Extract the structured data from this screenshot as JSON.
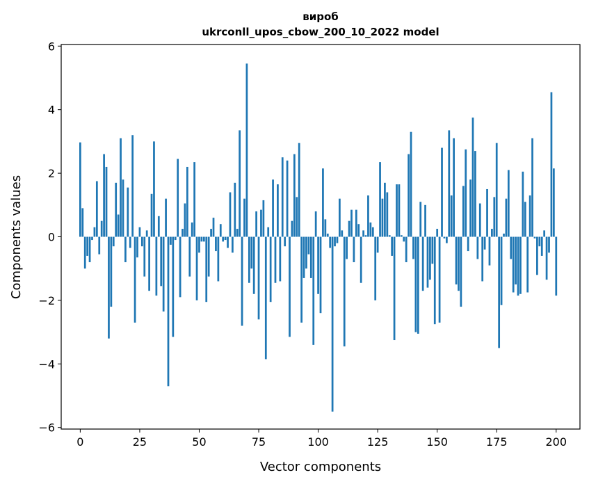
{
  "chart_data": {
    "type": "bar",
    "title_lines": [
      "вироб",
      "ukrconll_upos_cbow_200_10_2022 model"
    ],
    "xlabel": "Vector components",
    "ylabel": "Components values",
    "xlim": [
      -8,
      210
    ],
    "ylim": [
      -6.05,
      6.05
    ],
    "xticks": [
      0,
      25,
      50,
      75,
      100,
      125,
      150,
      175,
      200
    ],
    "yticks": [
      -6,
      -4,
      -2,
      0,
      2,
      4,
      6
    ],
    "xtick_labels": [
      "0",
      "25",
      "50",
      "75",
      "100",
      "125",
      "150",
      "175",
      "200"
    ],
    "ytick_labels": [
      "−6",
      "−4",
      "−2",
      "0",
      "2",
      "4",
      "6"
    ],
    "grid": false,
    "bar_color": "#1f77b4",
    "values": [
      2.97,
      0.9,
      -1.0,
      -0.6,
      -0.8,
      -0.1,
      0.3,
      1.75,
      -0.55,
      0.5,
      2.6,
      2.2,
      -3.2,
      -2.2,
      -0.3,
      1.7,
      0.7,
      3.1,
      1.8,
      -0.8,
      1.55,
      -0.35,
      3.2,
      -2.7,
      -0.65,
      0.3,
      -0.3,
      -1.25,
      0.2,
      -1.7,
      1.35,
      3.0,
      -1.85,
      0.65,
      -1.55,
      -2.35,
      1.2,
      -4.7,
      -0.25,
      -3.15,
      -0.1,
      2.45,
      -1.9,
      0.25,
      1.05,
      2.2,
      -1.25,
      0.45,
      2.35,
      -2.0,
      -0.5,
      -0.15,
      -0.15,
      -2.05,
      -1.25,
      0.25,
      0.6,
      -0.45,
      -1.4,
      0.4,
      -0.15,
      -0.1,
      -0.35,
      1.4,
      -0.5,
      1.7,
      0.25,
      3.35,
      -2.8,
      1.2,
      5.45,
      -1.45,
      -1.0,
      -1.8,
      0.8,
      -2.6,
      0.85,
      1.15,
      -3.85,
      0.3,
      -2.05,
      1.8,
      -1.45,
      1.65,
      -1.4,
      2.5,
      -0.3,
      2.4,
      -3.15,
      0.5,
      2.6,
      1.25,
      2.95,
      -2.7,
      -1.3,
      -1.0,
      -0.55,
      -1.3,
      -3.4,
      0.8,
      -1.8,
      -2.4,
      2.15,
      0.55,
      0.1,
      -0.35,
      -5.5,
      -0.3,
      -0.2,
      1.2,
      0.2,
      -3.45,
      -0.7,
      0.5,
      0.85,
      -0.8,
      0.85,
      0.4,
      -1.45,
      0.2,
      0.05,
      1.3,
      0.45,
      0.3,
      -2.0,
      -0.5,
      2.35,
      1.2,
      1.7,
      1.4,
      0.05,
      -0.6,
      -3.25,
      1.65,
      1.65,
      0.05,
      -0.15,
      -0.8,
      2.6,
      3.3,
      -0.7,
      -3.0,
      -3.05,
      1.1,
      -1.7,
      1.0,
      -1.6,
      -1.35,
      -0.85,
      -2.75,
      0.25,
      -2.7,
      2.8,
      -0.05,
      -0.2,
      3.35,
      1.3,
      3.1,
      -1.5,
      -1.7,
      -2.2,
      1.6,
      2.75,
      -0.45,
      1.8,
      3.75,
      2.7,
      -0.7,
      1.05,
      -1.4,
      -0.4,
      1.5,
      -0.9,
      0.25,
      1.25,
      2.95,
      -3.5,
      -2.15,
      0.1,
      1.2,
      2.1,
      -0.7,
      -1.75,
      -1.5,
      -1.85,
      -1.8,
      2.05,
      1.1,
      -1.75,
      1.3,
      3.1,
      -0.05,
      -1.2,
      -0.3,
      -0.6,
      0.2,
      -1.35,
      -0.5,
      4.55,
      2.15,
      -1.85
    ]
  }
}
